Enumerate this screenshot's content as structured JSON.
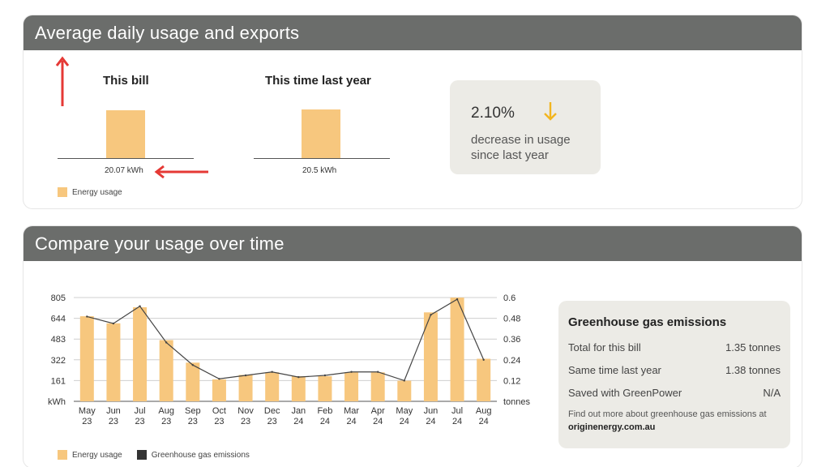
{
  "top_card": {
    "title": "Average daily usage and exports",
    "this_bill": {
      "title": "This bill",
      "value_label": "20.07 kWh"
    },
    "last_year": {
      "title": "This time last year",
      "value_label": "20.5 kWh"
    },
    "legend": "Energy usage",
    "change": {
      "percent": "2.10%",
      "description": "decrease in usage since last year",
      "direction": "down"
    }
  },
  "bottom_card": {
    "title": "Compare your usage over time",
    "legend": {
      "usage": "Energy usage",
      "ghg": "Greenhouse gas emissions"
    },
    "ghg_panel": {
      "title": "Greenhouse gas emissions",
      "rows": [
        {
          "label": "Total for this bill",
          "value": "1.35 tonnes"
        },
        {
          "label": "Same time last year",
          "value": "1.38 tonnes"
        },
        {
          "label": "Saved with GreenPower",
          "value": "N/A"
        }
      ],
      "note_prefix": "Find out more about greenhouse gas emissions at",
      "note_link": "originenergy.com.au"
    }
  },
  "colors": {
    "header": "#6b6d6b",
    "bar": "#f7c77e",
    "arrow": "#f2b51f",
    "annotation": "#e53935",
    "line": "#444444"
  },
  "chart_data": [
    {
      "type": "bar",
      "categories": [
        "This bill",
        "This time last year"
      ],
      "values": [
        20.07,
        20.5
      ],
      "value_labels": [
        "20.07 kWh",
        "20.5 kWh"
      ],
      "legend": [
        "Energy usage"
      ]
    },
    {
      "type": "bar",
      "categories": [
        "May 23",
        "Jun 23",
        "Jul 23",
        "Aug 23",
        "Sep 23",
        "Oct 23",
        "Nov 23",
        "Dec 23",
        "Jan 24",
        "Feb 24",
        "Mar 24",
        "Apr 24",
        "May 24",
        "Jun 24",
        "Jul 24",
        "Aug 24"
      ],
      "x_tick_lines": [
        [
          "May",
          "23"
        ],
        [
          "Jun",
          "23"
        ],
        [
          "Jul",
          "23"
        ],
        [
          "Aug",
          "23"
        ],
        [
          "Sep",
          "23"
        ],
        [
          "Oct",
          "23"
        ],
        [
          "Nov",
          "23"
        ],
        [
          "Dec",
          "23"
        ],
        [
          "Jan",
          "24"
        ],
        [
          "Feb",
          "24"
        ],
        [
          "Mar",
          "24"
        ],
        [
          "Apr",
          "24"
        ],
        [
          "May",
          "24"
        ],
        [
          "Jun",
          "24"
        ],
        [
          "Jul",
          "24"
        ],
        [
          "Aug",
          "24"
        ]
      ],
      "series": [
        {
          "name": "Energy usage",
          "type": "bar",
          "axis": "left",
          "values": [
            660,
            605,
            730,
            475,
            300,
            170,
            205,
            225,
            195,
            195,
            225,
            225,
            160,
            690,
            805,
            330
          ]
        },
        {
          "name": "Greenhouse gas emissions",
          "type": "line",
          "axis": "right",
          "values": [
            0.49,
            0.45,
            0.55,
            0.34,
            0.21,
            0.13,
            0.15,
            0.17,
            0.14,
            0.15,
            0.17,
            0.17,
            0.12,
            0.5,
            0.59,
            0.24
          ]
        }
      ],
      "ylim_left": [
        0,
        805
      ],
      "yticks_left": [
        "805",
        "644",
        "483",
        "322",
        "161",
        "kWh"
      ],
      "ylim_right": [
        0,
        0.6
      ],
      "yticks_right": [
        "0.6",
        "0.48",
        "0.36",
        "0.24",
        "0.12",
        "tonnes"
      ],
      "grid": true,
      "legend_position": "bottom-left"
    }
  ]
}
